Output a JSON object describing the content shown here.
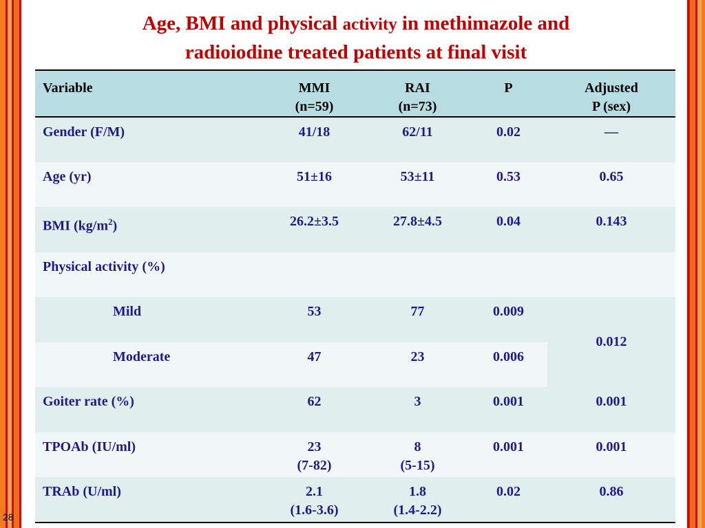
{
  "title": {
    "part1": "Age, BMI and physical ",
    "part2": "activity",
    "part3": " in methimazole and",
    "line2": "radioiodine treated patients at final visit"
  },
  "table": {
    "headers": {
      "variable": "Variable",
      "mmi": "MMI",
      "mmi_n": "(n=59)",
      "rai": "RAI",
      "rai_n": "(n=73)",
      "p": "P",
      "adjusted": "Adjusted",
      "adjusted_sub": "P (sex)"
    },
    "rows": {
      "gender": {
        "label": "Gender (F/M)",
        "mmi": "41/18",
        "rai": "62/11",
        "p": "0.02",
        "adj": "—"
      },
      "age": {
        "label": "Age (yr)",
        "mmi": "51±16",
        "rai": "53±11",
        "p": "0.53",
        "adj": "0.65"
      },
      "bmi": {
        "label": "BMI (kg/m",
        "label_sup": "2",
        "label_end": ")",
        "mmi": "26.2±3.5",
        "rai": "27.8±4.5",
        "p": "0.04",
        "adj": "0.143"
      },
      "activity": {
        "label": "Physical activity (%)"
      },
      "mild": {
        "label": "Mild",
        "mmi": "53",
        "rai": "77",
        "p": "0.009",
        "adj": "0.012"
      },
      "moderate": {
        "label": "Moderate",
        "mmi": "47",
        "rai": "23",
        "p": "0.006"
      },
      "goiter": {
        "label": "Goiter rate (%)",
        "mmi": "62",
        "rai": "3",
        "p": "0.001",
        "adj": "0.001"
      },
      "tpoab": {
        "label": "TPOAb (IU/ml)",
        "mmi": "23",
        "mmi_range": "(7-82)",
        "rai": "8",
        "rai_range": "(5-15)",
        "p": "0.001",
        "adj": "0.001"
      },
      "trab": {
        "label": "TRAb (U/ml)",
        "mmi": "2.1",
        "mmi_range": "(1.6-3.6)",
        "rai": "1.8",
        "rai_range": "(1.4-2.2)",
        "p": "0.02",
        "adj": "0.86"
      }
    }
  },
  "page_number": "28",
  "colors": {
    "title": "#c00000",
    "header_bg": "#b7dde3",
    "row_dark": "#e1eeee",
    "row_light": "#f1f6f6",
    "cell_text": "#1f1a8c",
    "border_orange": "#f26a1b",
    "border_red": "#c41212"
  }
}
